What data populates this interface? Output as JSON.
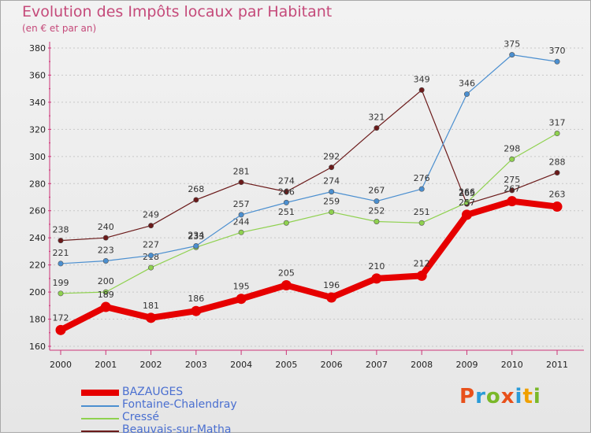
{
  "header": {
    "title": "Evolution des Impôts locaux par Habitant",
    "subtitle": "(en € et par an)"
  },
  "logo": {
    "text": "Proxiti",
    "letters": [
      "P",
      "r",
      "o",
      "x",
      "i",
      "t",
      "i"
    ],
    "colors": [
      "#e8501a",
      "#2a9bd8",
      "#7ab829",
      "#e8501a",
      "#2a9bd8",
      "#f0a000",
      "#7ab829"
    ]
  },
  "chart_data": {
    "type": "line",
    "title": "Evolution des Impôts locaux par Habitant",
    "subtitle": "(en € et par an)",
    "xlabel": "",
    "ylabel": "",
    "x": [
      2000,
      2001,
      2002,
      2003,
      2004,
      2005,
      2006,
      2007,
      2008,
      2009,
      2010,
      2011
    ],
    "ylim": [
      160,
      380
    ],
    "yticks": [
      160,
      180,
      200,
      220,
      240,
      260,
      280,
      300,
      320,
      340,
      360,
      380
    ],
    "grid": "horizontal dotted",
    "legend_position": "bottom-left",
    "series": [
      {
        "name": "Beauvais-sur-Matha",
        "color": "#6b1a1a",
        "values": [
          238,
          240,
          249,
          268,
          281,
          274,
          292,
          321,
          349,
          265,
          275,
          288
        ]
      },
      {
        "name": "Cressé",
        "color": "#8fd14f",
        "values": [
          199,
          200,
          218,
          233,
          244,
          251,
          259,
          252,
          251,
          266,
          298,
          317
        ]
      },
      {
        "name": "Fontaine-Chalendray",
        "color": "#4b8fd0",
        "values": [
          221,
          223,
          227,
          234,
          257,
          266,
          274,
          267,
          276,
          346,
          375,
          370
        ]
      },
      {
        "name": "BAZAUGES",
        "color": "#e60000",
        "values": [
          172,
          189,
          181,
          186,
          195,
          205,
          196,
          210,
          212,
          257,
          267,
          263
        ]
      }
    ],
    "legend": [
      "BAZAUGES",
      "Fontaine-Chalendray",
      "Cressé",
      "Beauvais-sur-Matha"
    ]
  }
}
